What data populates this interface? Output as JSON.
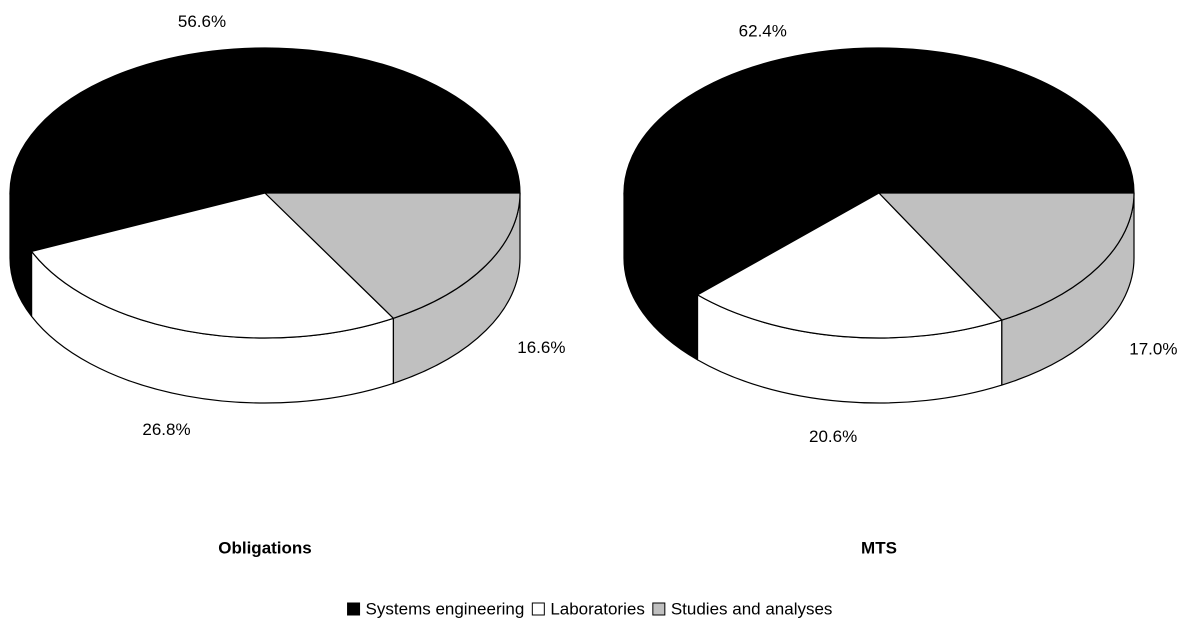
{
  "chart_data": [
    {
      "type": "pie",
      "title": "Obligations",
      "categories": [
        "Systems engineering",
        "Laboratories",
        "Studies and analyses"
      ],
      "values": [
        56.6,
        26.8,
        16.6
      ],
      "value_labels": [
        "56.6%",
        "26.8%",
        "16.6%"
      ],
      "colors": [
        "#000000",
        "#ffffff",
        "#c0c0c0"
      ]
    },
    {
      "type": "pie",
      "title": "MTS",
      "categories": [
        "Systems engineering",
        "Laboratories",
        "Studies and analyses"
      ],
      "values": [
        62.4,
        20.6,
        17.0
      ],
      "value_labels": [
        "62.4%",
        "20.6%",
        "17.0%"
      ],
      "colors": [
        "#000000",
        "#ffffff",
        "#c0c0c0"
      ]
    }
  ]
}
